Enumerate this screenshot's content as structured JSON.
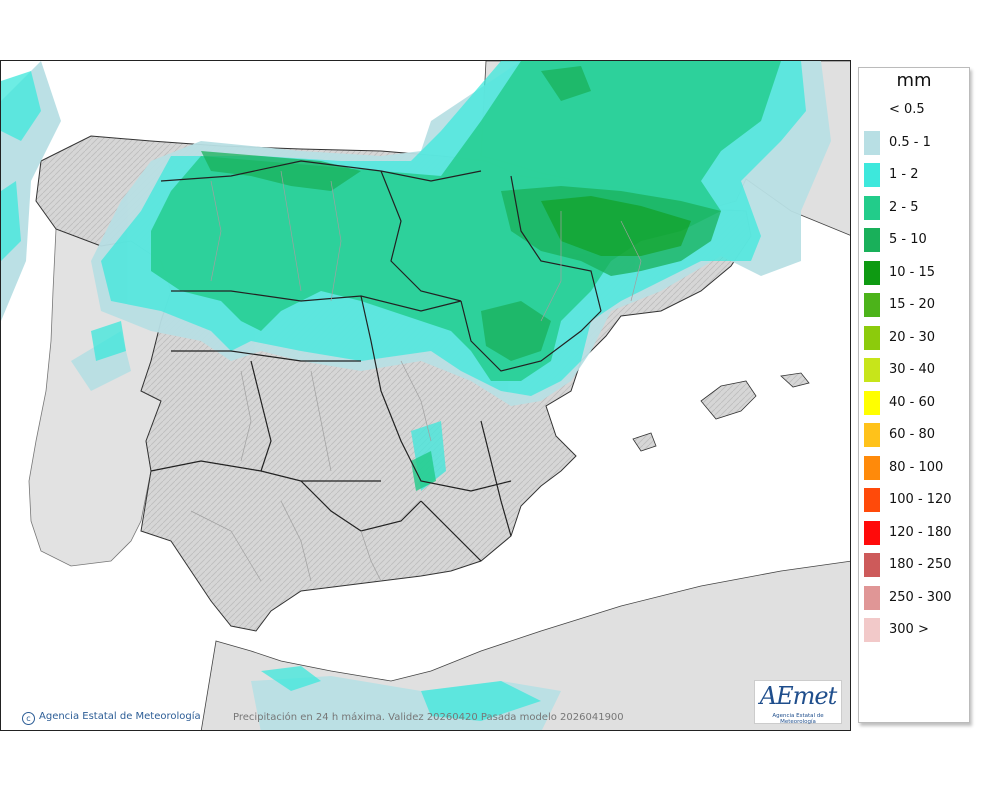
{
  "legend": {
    "unit": "mm",
    "classes": [
      {
        "label": "< 0.5",
        "color": "#ffffff"
      },
      {
        "label": "0.5 - 1",
        "color": "#b8dfe4"
      },
      {
        "label": "1 - 2",
        "color": "#3de8dc"
      },
      {
        "label": "2 - 5",
        "color": "#22cc8a"
      },
      {
        "label": "5 - 10",
        "color": "#19b05a"
      },
      {
        "label": "10 - 15",
        "color": "#0e9a12"
      },
      {
        "label": "15 - 20",
        "color": "#4cb31a"
      },
      {
        "label": "20 - 30",
        "color": "#8ccb0c"
      },
      {
        "label": "30 - 40",
        "color": "#c7e51a"
      },
      {
        "label": "40 - 60",
        "color": "#ffff00"
      },
      {
        "label": "60 - 80",
        "color": "#ffc21a"
      },
      {
        "label": "80 - 100",
        "color": "#ff8a0a"
      },
      {
        "label": "100 - 120",
        "color": "#ff4a0a"
      },
      {
        "label": "120 - 180",
        "color": "#ff0a0a"
      },
      {
        "label": "180 - 250",
        "color": "#cd5a5a"
      },
      {
        "label": "250 - 300",
        "color": "#e09696"
      },
      {
        "label": "300 >",
        "color": "#f2c9c9"
      }
    ]
  },
  "credit": "Agencia Estatal de Meteorología",
  "caption": "Precipitación en 24 h máxima. Validez  20260420 Pasada modelo  2026041900",
  "logo": {
    "wordmark": "AEmet",
    "subtitle": "Agencia Estatal de Meteorología"
  },
  "colors": {
    "sea": "#ffffff",
    "land": "#e0e0e0",
    "spain_relief": "#d0d0d0",
    "borders": "#222222",
    "province_lines": "#a0a0a0"
  }
}
